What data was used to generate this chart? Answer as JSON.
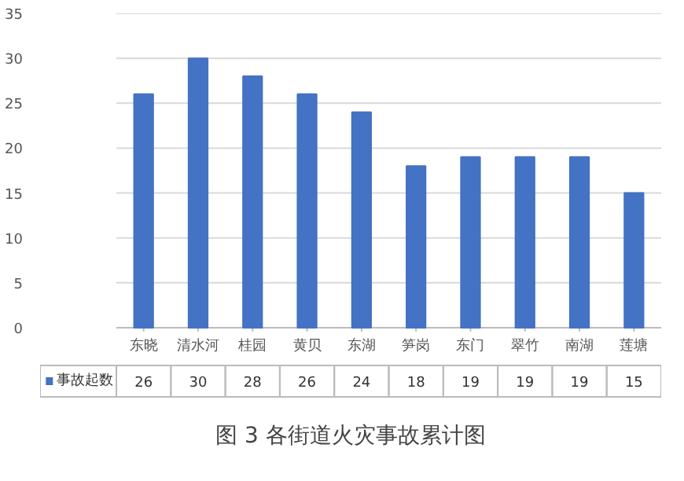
{
  "chart_data": {
    "type": "bar",
    "title": "图 3 各街道火灾事故累计图",
    "categories": [
      "东晓",
      "清水河",
      "桂园",
      "黄贝",
      "东湖",
      "笋岗",
      "东门",
      "翠竹",
      "南湖",
      "莲塘"
    ],
    "series": [
      {
        "name": "事故起数",
        "color": "#4472c4",
        "values": [
          26,
          30,
          28,
          26,
          24,
          18,
          19,
          19,
          19,
          15
        ]
      }
    ],
    "ylim": [
      0,
      35
    ],
    "yticks": [
      0,
      5,
      10,
      15,
      20,
      25,
      30,
      35
    ],
    "grid": "y",
    "legend": "bottom",
    "data_labels": true
  }
}
